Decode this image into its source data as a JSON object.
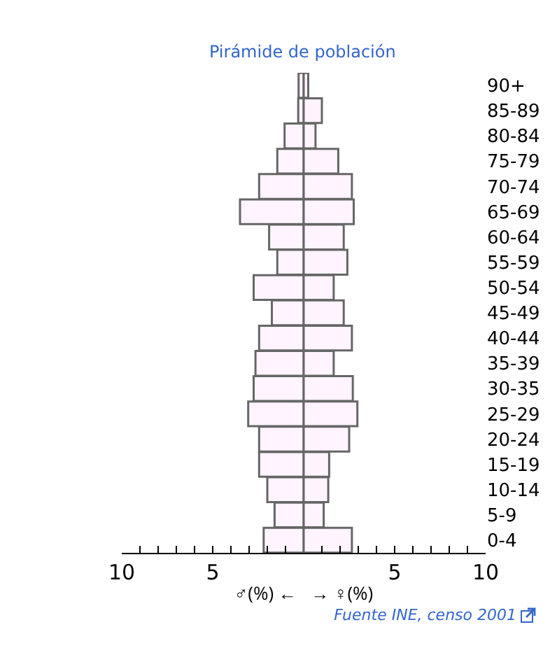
{
  "chart_data": {
    "type": "bar",
    "orientation": "horizontal",
    "stacked": true,
    "title": "Pirámide de población",
    "xlabel": "♂(%) ←   → ♀(%)",
    "categories": [
      "90+",
      "85-89",
      "80-84",
      "75-79",
      "70-74",
      "65-69",
      "60-64",
      "55-59",
      "50-54",
      "45-49",
      "40-44",
      "35-39",
      "30-35",
      "25-29",
      "20-24",
      "15-19",
      "10-14",
      "5-9",
      "0-4"
    ],
    "series": [
      {
        "color": "#fff4ff",
        "values": [
          -0.28,
          -0.3,
          -1.05,
          -1.45,
          -2.45,
          -3.5,
          -1.9,
          -1.45,
          -2.75,
          -1.75,
          -2.45,
          -2.65,
          -2.75,
          -3.05,
          -2.45,
          -2.45,
          -2.0,
          -1.6,
          -2.2
        ]
      },
      {
        "color": "#fff4ff",
        "values": [
          0.25,
          1.0,
          0.65,
          1.9,
          2.65,
          2.75,
          2.2,
          2.4,
          1.65,
          2.2,
          2.65,
          1.65,
          2.7,
          2.95,
          2.5,
          1.4,
          1.35,
          1.1,
          2.65
        ]
      }
    ],
    "xlim": [
      -10,
      10
    ],
    "xticks": [
      {
        "value": -10,
        "label": "10"
      },
      {
        "value": -9,
        "label": null
      },
      {
        "value": -8,
        "label": null
      },
      {
        "value": -7,
        "label": null
      },
      {
        "value": -6,
        "label": null
      },
      {
        "value": -5,
        "label": "5"
      },
      {
        "value": -4,
        "label": null
      },
      {
        "value": -3,
        "label": null
      },
      {
        "value": -2,
        "label": null
      },
      {
        "value": -1,
        "label": null
      },
      {
        "value": 1,
        "label": null
      },
      {
        "value": 2,
        "label": null
      },
      {
        "value": 3,
        "label": null
      },
      {
        "value": 4,
        "label": null
      },
      {
        "value": 5,
        "label": "5"
      },
      {
        "value": 6,
        "label": null
      },
      {
        "value": 7,
        "label": null
      },
      {
        "value": 8,
        "label": null
      },
      {
        "value": 9,
        "label": null
      },
      {
        "value": 10,
        "label": "10"
      }
    ],
    "grid": false,
    "annotations": [
      "Fuente INE, censo 2001"
    ]
  }
}
